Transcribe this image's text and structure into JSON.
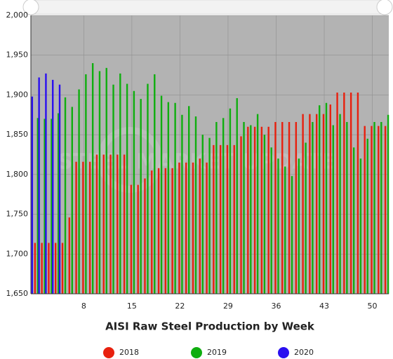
{
  "chart_data": {
    "type": "bar",
    "title": "AISI Raw Steel Production by Week",
    "watermark": "STEEL MARKET UPDATE",
    "x": [
      1,
      2,
      3,
      4,
      5,
      6,
      7,
      8,
      9,
      10,
      11,
      12,
      13,
      14,
      15,
      16,
      17,
      18,
      19,
      20,
      21,
      22,
      23,
      24,
      25,
      26,
      27,
      28,
      29,
      30,
      31,
      32,
      33,
      34,
      35,
      36,
      37,
      38,
      39,
      40,
      41,
      42,
      43,
      44,
      45,
      46,
      47,
      48,
      49,
      50,
      51,
      52
    ],
    "xlim": [
      0.3,
      52.4
    ],
    "xticks": [
      8,
      15,
      22,
      29,
      36,
      43,
      50
    ],
    "ylim": [
      1650,
      2000
    ],
    "yticks": [
      {
        "value": 1650,
        "label": "1,650"
      },
      {
        "value": 1700,
        "label": "1,700"
      },
      {
        "value": 1750,
        "label": "1,750"
      },
      {
        "value": 1800,
        "label": "1,800"
      },
      {
        "value": 1850,
        "label": "1,850"
      },
      {
        "value": 1900,
        "label": "1,900"
      },
      {
        "value": 1950,
        "label": "1,950"
      },
      {
        "value": 2000,
        "label": "2,000"
      }
    ],
    "grid": true,
    "legend": "bottom",
    "series": [
      {
        "name": "2018",
        "color": "#e8200e",
        "values": [
          1714,
          1714,
          1714,
          1714,
          1714,
          1746,
          1816,
          1816,
          1816,
          1825,
          1825,
          1825,
          1825,
          1825,
          1787,
          1787,
          1795,
          1805,
          1808,
          1808,
          1808,
          1815,
          1815,
          1815,
          1820,
          1815,
          1837,
          1837,
          1837,
          1837,
          1848,
          1860,
          1860,
          1860,
          1860,
          1866,
          1866,
          1866,
          1866,
          1876,
          1876,
          1876,
          1876,
          1888,
          1903,
          1903,
          1903,
          1903,
          1861,
          1861,
          1861,
          1861
        ]
      },
      {
        "name": "2019",
        "color": "#0fae0f",
        "values": [
          1871,
          1870,
          1870,
          1877,
          1897,
          1885,
          1907,
          1926,
          1940,
          1930,
          1934,
          1913,
          1927,
          1914,
          1905,
          1895,
          1914,
          1926,
          1899,
          1891,
          1890,
          1875,
          1886,
          1873,
          1850,
          1846,
          1866,
          1871,
          1883,
          1896,
          1866,
          1862,
          1876,
          1850,
          1834,
          1820,
          1810,
          1798,
          1820,
          1840,
          1866,
          1887,
          1890,
          1862,
          1876,
          1866,
          1834,
          1820,
          1845,
          1866,
          1866,
          1875
        ]
      },
      {
        "name": "2020",
        "color": "#2a0ff0",
        "values": [
          1898,
          1922,
          1927,
          1919,
          1913,
          null,
          null,
          null,
          null,
          null,
          null,
          null,
          null,
          null,
          null,
          null,
          null,
          null,
          null,
          null,
          null,
          null,
          null,
          null,
          null,
          null,
          null,
          null,
          null,
          null,
          null,
          null,
          null,
          null,
          null,
          null,
          null,
          null,
          null,
          null,
          null,
          null,
          null,
          null,
          null,
          null,
          null,
          null,
          null,
          null,
          null,
          null
        ]
      }
    ]
  }
}
